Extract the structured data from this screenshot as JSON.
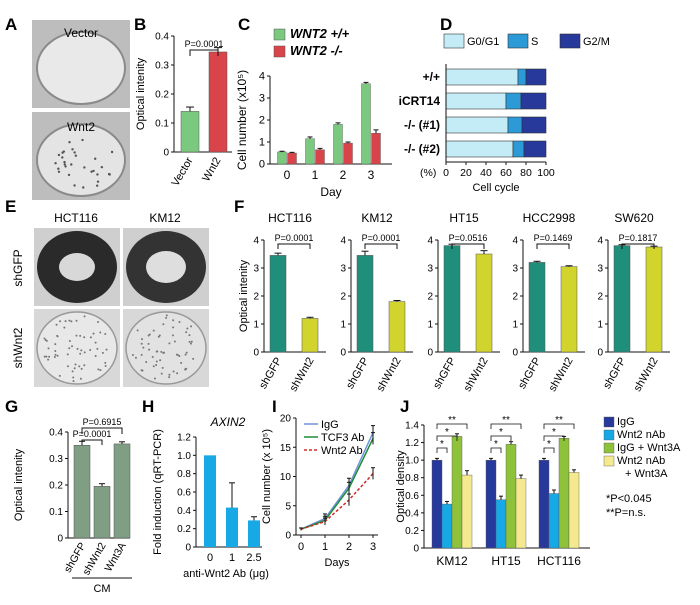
{
  "panel_letters": [
    "A",
    "B",
    "C",
    "D",
    "E",
    "F",
    "G",
    "H",
    "I",
    "J"
  ],
  "panel_A": {
    "top_label": "Vector",
    "bottom_label": "Wnt2"
  },
  "panel_E": {
    "columns": [
      "HCT116",
      "KM12"
    ],
    "rows": [
      "shGFP",
      "shWnt2"
    ]
  },
  "colors": {
    "green": "#7ac97e",
    "red_bar": "#d9444a",
    "teal": "#1f8f7c",
    "yellow": "#d2d42e",
    "sage": "#7f9e84",
    "blue": "#17a8e6",
    "navy": "#27399b",
    "lime": "#8fc23b",
    "pale": "#f5e98f",
    "lightcyan": "#c4ecf7",
    "midblue": "#2d9ad8"
  },
  "chart_data": [
    {
      "id": "B",
      "type": "bar",
      "categories": [
        "Vector",
        "Wnt2"
      ],
      "values": [
        0.14,
        0.345
      ],
      "errors": [
        0.015,
        0.015
      ],
      "ylabel": "Optical intenity",
      "ylim": [
        0,
        0.4
      ],
      "yticks": [
        0,
        0.1,
        0.2,
        0.3,
        0.4
      ],
      "yticklabels": [
        "0",
        "0.1",
        "0.2",
        "0.3",
        "0.4"
      ],
      "annotation": "P=0.0001"
    },
    {
      "id": "C",
      "type": "bar",
      "categories": [
        "0",
        "1",
        "2",
        "3"
      ],
      "series": [
        {
          "name": "WNT2 +/+",
          "values": [
            0.55,
            1.15,
            1.8,
            3.65
          ],
          "errors": [
            0.03,
            0.08,
            0.07,
            0.06
          ]
        },
        {
          "name": "WNT2 -/-",
          "values": [
            0.5,
            0.65,
            0.95,
            1.4
          ],
          "errors": [
            0.03,
            0.06,
            0.05,
            0.15
          ]
        }
      ],
      "legend": [
        "WNT2 +/+",
        "WNT2 -/-"
      ],
      "xlabel": "Day",
      "ylabel": "Cell number (x10⁵)",
      "ylim": [
        0,
        4
      ],
      "yticks": [
        0,
        1,
        2,
        3,
        4
      ],
      "yticklabels": [
        "0",
        "1",
        "2",
        "3",
        "4"
      ]
    },
    {
      "id": "D",
      "type": "bar",
      "orientation": "horizontal",
      "stacked": true,
      "categories": [
        "+/+",
        "iCRT14",
        "-/- (#1)",
        "-/- (#2)"
      ],
      "series": [
        {
          "name": "G0/G1",
          "values": [
            72,
            60,
            62,
            67
          ]
        },
        {
          "name": "S",
          "values": [
            8,
            15,
            14,
            11
          ]
        },
        {
          "name": "G2/M",
          "values": [
            20,
            25,
            24,
            22
          ]
        }
      ],
      "legend": [
        "G0/G1",
        "S",
        "G2/M"
      ],
      "xlabel": "Cell cycle",
      "xunit": "(%)",
      "xlim": [
        0,
        100
      ],
      "xticks": [
        0,
        20,
        40,
        60,
        80,
        100
      ],
      "xticklabels": [
        "0",
        "20",
        "40",
        "60",
        "80",
        "100"
      ]
    },
    {
      "id": "F",
      "type": "bar",
      "ylabel": "Optical intenity",
      "ylim": [
        0,
        4
      ],
      "yticks": [
        0,
        1,
        2,
        3,
        4
      ],
      "yticklabels": [
        "0",
        "1",
        "2",
        "3",
        "4"
      ],
      "subplots": [
        {
          "title": "HCT116",
          "categories": [
            "shGFP",
            "shWnt2"
          ],
          "values": [
            3.45,
            1.2
          ],
          "errors": [
            0.08,
            0.04
          ],
          "annotation": "P=0.0001"
        },
        {
          "title": "KM12",
          "categories": [
            "shGFP",
            "shWnt2"
          ],
          "values": [
            3.45,
            1.8
          ],
          "errors": [
            0.15,
            0.04
          ],
          "annotation": "P=0.0001"
        },
        {
          "title": "HT15",
          "categories": [
            "shGFP",
            "shWnt2"
          ],
          "values": [
            3.8,
            3.5
          ],
          "errors": [
            0.05,
            0.12
          ],
          "annotation": "P=0.0516"
        },
        {
          "title": "HCC2998",
          "categories": [
            "shGFP",
            "shWnt2"
          ],
          "values": [
            3.2,
            3.05
          ],
          "errors": [
            0.04,
            0.03
          ],
          "annotation": "P=0.1469"
        },
        {
          "title": "SW620",
          "categories": [
            "shGFP",
            "shWnt2"
          ],
          "values": [
            3.8,
            3.75
          ],
          "errors": [
            0.03,
            0.03
          ],
          "annotation": "P=0.1817"
        }
      ]
    },
    {
      "id": "G",
      "type": "bar",
      "categories": [
        "shGFP",
        "shWnt2",
        "Wnt3A"
      ],
      "values": [
        0.35,
        0.195,
        0.355
      ],
      "errors": [
        0.015,
        0.01,
        0.008
      ],
      "ylabel": "Optical intenity",
      "xgroup": "CM",
      "ylim": [
        0,
        0.4
      ],
      "yticks": [
        0,
        0.1,
        0.2,
        0.3,
        0.4
      ],
      "yticklabels": [
        "0",
        "0.1",
        "0.2",
        "0.3",
        "0.4"
      ],
      "annotations": [
        "P=0.6915",
        "P=0.0001"
      ]
    },
    {
      "id": "H",
      "type": "bar",
      "title": "AXIN2",
      "categories": [
        "0",
        "1",
        "2.5"
      ],
      "values": [
        1.0,
        0.43,
        0.29
      ],
      "errors": [
        0,
        0.27,
        0.04
      ],
      "ylabel": "Fold induction (qRT-PCR)",
      "xlabel": "anti-Wnt2 Ab (μg)",
      "ylim": [
        0,
        1.2
      ],
      "yticks": [
        0,
        0.2,
        0.4,
        0.6,
        0.8,
        1.0,
        1.2
      ],
      "yticklabels": [
        "0",
        "0.2",
        "0.4",
        "0.6",
        "0.8",
        "1.0",
        "1.2"
      ]
    },
    {
      "id": "I",
      "type": "line",
      "x": [
        0,
        1,
        2,
        3
      ],
      "series": [
        {
          "name": "IgG",
          "values": [
            1,
            2.8,
            8.5,
            17.5
          ],
          "errors": [
            0.2,
            0.8,
            1.2,
            1.2
          ]
        },
        {
          "name": "TCF3 Ab",
          "values": [
            1,
            2.5,
            8,
            16.5
          ],
          "errors": [
            0.2,
            0.7,
            1.0,
            1.0
          ]
        },
        {
          "name": "Wnt2 Ab",
          "values": [
            1,
            2.3,
            6,
            10.5
          ],
          "errors": [
            0.2,
            0.6,
            1.0,
            1.0
          ]
        }
      ],
      "legend": [
        "IgG",
        "TCF3 Ab",
        "Wnt2 Ab"
      ],
      "xlabel": "Days",
      "ylabel": "Cell number (x 10⁵)",
      "ylim": [
        0,
        20
      ],
      "yticks": [
        0,
        5,
        10,
        15,
        20
      ],
      "yticklabels": [
        "0",
        "5",
        "10",
        "15",
        "20"
      ],
      "xticklabels": [
        "0",
        "1",
        "2",
        "3"
      ]
    },
    {
      "id": "J",
      "type": "bar",
      "categories": [
        "KM12",
        "HT15",
        "HCT116"
      ],
      "series": [
        {
          "name": "IgG",
          "values": [
            1.0,
            1.0,
            1.0
          ],
          "errors": [
            0.02,
            0.02,
            0.02
          ]
        },
        {
          "name": "Wnt2 nAb",
          "values": [
            0.5,
            0.55,
            0.62
          ],
          "errors": [
            0.03,
            0.04,
            0.04
          ]
        },
        {
          "name": "IgG + Wnt3A",
          "values": [
            1.27,
            1.18,
            1.25
          ],
          "errors": [
            0.03,
            0.03,
            0.02
          ]
        },
        {
          "name": "Wnt2 nAb + Wnt3A",
          "values": [
            0.83,
            0.79,
            0.86
          ],
          "errors": [
            0.05,
            0.04,
            0.03
          ]
        }
      ],
      "legend": [
        "IgG",
        "Wnt2 nAb",
        "IgG + Wnt3A",
        "Wnt2 nAb",
        "+ Wnt3A"
      ],
      "ylabel": "Optical density",
      "ylim": [
        0,
        1.4
      ],
      "yticks": [
        0,
        0.2,
        0.4,
        0.6,
        0.8,
        1.0,
        1.2,
        1.4
      ],
      "yticklabels": [
        "0",
        "0.2",
        "0.4",
        "0.6",
        "0.8",
        "1.0",
        "1.2",
        "1.4"
      ],
      "notes": [
        "*P<0.045",
        "**P=n.s."
      ],
      "stars": [
        "*",
        "*",
        "**"
      ]
    }
  ]
}
